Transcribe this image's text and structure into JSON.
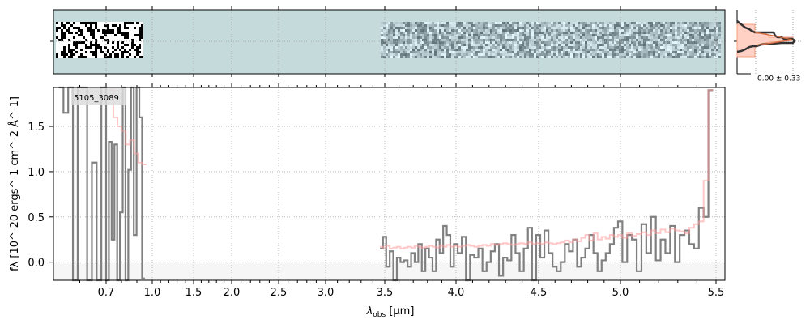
{
  "chart_data": {
    "type": "line",
    "object_id": "5105_3089",
    "xlabel": "λobs [μm]",
    "xlabel_main": "λ",
    "xlabel_sub": "obs",
    "xlabel_unit": " [μm]",
    "ylabel": "fλ [10^-20 ergs^-1 cm^-2 Å^-1]",
    "ylim": [
      -0.2,
      1.93
    ],
    "xlim": [
      0.5,
      5.55
    ],
    "x_tick_labels": [
      "0.7",
      "1.0",
      "1.5",
      "2.0",
      "2.5",
      "3.0",
      "3.5",
      "4.0",
      "4.5",
      "5.0",
      "5.5"
    ],
    "x_ticks": [
      0.7,
      1.0,
      1.5,
      2.0,
      2.5,
      3.0,
      3.5,
      4.0,
      4.5,
      5.0,
      5.5
    ],
    "y_ticks": [
      0.0,
      0.5,
      1.0,
      1.5
    ],
    "y_tick_labels": [
      "0.0",
      "0.5",
      "1.0",
      "1.5"
    ],
    "grid": true,
    "histogram_label": "0.00 ± 0.33",
    "series": [
      {
        "name": "data-blue",
        "color": "#808080",
        "x_start": 0.52,
        "x_step": 0.018,
        "values": [
          1.93,
          1.65,
          1.93,
          -0.2,
          1.93,
          1.93,
          -0.2,
          1.1,
          -0.2,
          1.93,
          -0.2,
          1.33,
          0.25,
          1.3,
          -0.2,
          0.55,
          1.93,
          -0.2,
          1.02,
          1.93,
          0.3,
          1.93,
          1.6,
          -0.18
        ]
      },
      {
        "name": "data-red",
        "color": "#808080",
        "x_start": 3.46,
        "x_step": 0.025,
        "values": [
          0.15,
          0.28,
          -0.05,
          0.12,
          -0.2,
          0.05,
          0.0,
          0.02,
          -0.05,
          0.1,
          0.0,
          0.2,
          -0.1,
          0.15,
          0.05,
          -0.1,
          0.25,
          0.1,
          0.4,
          0.3,
          -0.05,
          0.2,
          0.1,
          0.28,
          -0.2,
          0.08,
          0.05,
          0.15,
          -0.1,
          0.0,
          0.12,
          0.2,
          -0.15,
          0.05,
          0.02,
          0.3,
          0.1,
          -0.1,
          0.15,
          0.38,
          -0.2,
          0.3,
          0.05,
          0.35,
          0.1,
          -0.05,
          -0.1,
          0.0,
          0.2,
          0.12,
          0.25,
          -0.05,
          0.05,
          0.15,
          0.3,
          0.1,
          -0.1,
          0.02,
          0.1,
          0.2,
          0.38,
          0.45,
          0.0,
          0.3,
          0.25,
          -0.1,
          0.42,
          0.1,
          0.5,
          0.02,
          0.25,
          0.1,
          0.4,
          0.0,
          0.3,
          0.35,
          0.2,
          0.15,
          0.6,
          0.5,
          1.9
        ]
      },
      {
        "name": "model-blue",
        "color": "#ff9999",
        "x_start": 0.72,
        "x_step": 0.027,
        "values": [
          1.9,
          1.6,
          1.5,
          1.45,
          1.3,
          1.35,
          1.2,
          1.1,
          1.08
        ]
      },
      {
        "name": "model-red",
        "color": "#ff9999",
        "x_start": 3.46,
        "x_step": 0.025,
        "values": [
          0.17,
          0.16,
          0.18,
          0.15,
          0.16,
          0.17,
          0.15,
          0.16,
          0.17,
          0.16,
          0.18,
          0.17,
          0.16,
          0.17,
          0.18,
          0.17,
          0.16,
          0.18,
          0.17,
          0.19,
          0.17,
          0.18,
          0.17,
          0.18,
          0.19,
          0.18,
          0.17,
          0.18,
          0.19,
          0.18,
          0.2,
          0.19,
          0.2,
          0.21,
          0.2,
          0.19,
          0.2,
          0.21,
          0.2,
          0.22,
          0.2,
          0.21,
          0.2,
          0.22,
          0.21,
          0.2,
          0.21,
          0.22,
          0.24,
          0.22,
          0.25,
          0.23,
          0.27,
          0.3,
          0.24,
          0.32,
          0.25,
          0.28,
          0.26,
          0.3,
          0.28,
          0.3,
          0.27,
          0.32,
          0.29,
          0.31,
          0.33,
          0.3,
          0.35,
          0.32,
          0.36,
          0.33,
          0.37,
          0.35,
          0.34,
          0.32,
          0.38,
          0.42,
          0.45,
          0.9,
          1.9
        ]
      }
    ]
  }
}
